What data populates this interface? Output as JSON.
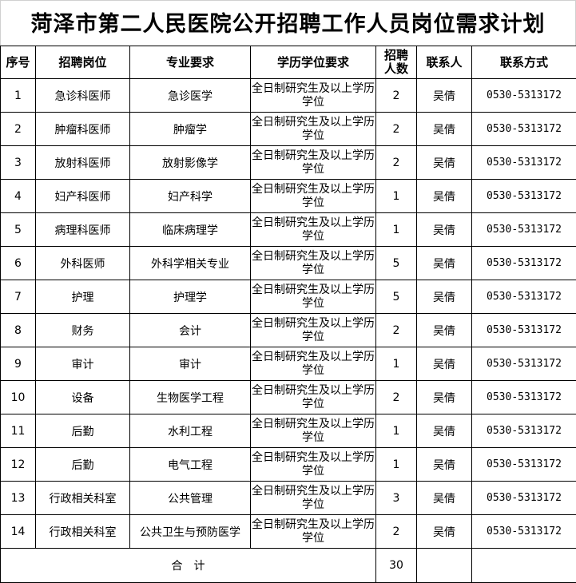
{
  "title": "菏泽市第二人民医院公开招聘工作人员岗位需求计划",
  "headers": {
    "index": "序号",
    "position": "招聘岗位",
    "major": "专业要求",
    "education": "学历学位要求",
    "count": "招聘人数",
    "contact": "联系人",
    "phone": "联系方式"
  },
  "rows": [
    {
      "index": "1",
      "position": "急诊科医师",
      "major": "急诊医学",
      "education": "全日制研究生及以上学历学位",
      "count": "2",
      "contact": "吴倩",
      "phone": "0530-5313172"
    },
    {
      "index": "2",
      "position": "肿瘤科医师",
      "major": "肿瘤学",
      "education": "全日制研究生及以上学历学位",
      "count": "2",
      "contact": "吴倩",
      "phone": "0530-5313172"
    },
    {
      "index": "3",
      "position": "放射科医师",
      "major": "放射影像学",
      "education": "全日制研究生及以上学历学位",
      "count": "2",
      "contact": "吴倩",
      "phone": "0530-5313172"
    },
    {
      "index": "4",
      "position": "妇产科医师",
      "major": "妇产科学",
      "education": "全日制研究生及以上学历学位",
      "count": "1",
      "contact": "吴倩",
      "phone": "0530-5313172"
    },
    {
      "index": "5",
      "position": "病理科医师",
      "major": "临床病理学",
      "education": "全日制研究生及以上学历学位",
      "count": "1",
      "contact": "吴倩",
      "phone": "0530-5313172"
    },
    {
      "index": "6",
      "position": "外科医师",
      "major": "外科学相关专业",
      "education": "全日制研究生及以上学历学位",
      "count": "5",
      "contact": "吴倩",
      "phone": "0530-5313172"
    },
    {
      "index": "7",
      "position": "护理",
      "major": "护理学",
      "education": "全日制研究生及以上学历学位",
      "count": "5",
      "contact": "吴倩",
      "phone": "0530-5313172"
    },
    {
      "index": "8",
      "position": "财务",
      "major": "会计",
      "education": "全日制研究生及以上学历学位",
      "count": "2",
      "contact": "吴倩",
      "phone": "0530-5313172"
    },
    {
      "index": "9",
      "position": "审计",
      "major": "审计",
      "education": "全日制研究生及以上学历学位",
      "count": "1",
      "contact": "吴倩",
      "phone": "0530-5313172"
    },
    {
      "index": "10",
      "position": "设备",
      "major": "生物医学工程",
      "education": "全日制研究生及以上学历学位",
      "count": "2",
      "contact": "吴倩",
      "phone": "0530-5313172"
    },
    {
      "index": "11",
      "position": "后勤",
      "major": "水利工程",
      "education": "全日制研究生及以上学历学位",
      "count": "1",
      "contact": "吴倩",
      "phone": "0530-5313172"
    },
    {
      "index": "12",
      "position": "后勤",
      "major": "电气工程",
      "education": "全日制研究生及以上学历学位",
      "count": "1",
      "contact": "吴倩",
      "phone": "0530-5313172"
    },
    {
      "index": "13",
      "position": "行政相关科室",
      "major": "公共管理",
      "education": "全日制研究生及以上学历学位",
      "count": "3",
      "contact": "吴倩",
      "phone": "0530-5313172"
    },
    {
      "index": "14",
      "position": "行政相关科室",
      "major": "公共卫生与预防医学",
      "education": "全日制研究生及以上学历学位",
      "count": "2",
      "contact": "吴倩",
      "phone": "0530-5313172"
    }
  ],
  "total": {
    "label": "合　计",
    "count": "30"
  }
}
